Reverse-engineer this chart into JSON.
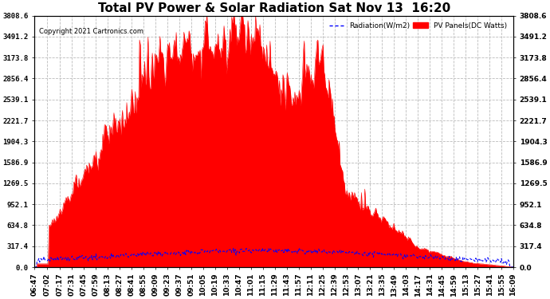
{
  "title": "Total PV Power & Solar Radiation Sat Nov 13  16:20",
  "copyright": "Copyright 2021 Cartronics.com",
  "legend_radiation": "Radiation(W/m2)",
  "legend_pv": "PV Panels(DC Watts)",
  "ymax": 3808.6,
  "yticks": [
    0.0,
    317.4,
    634.8,
    952.1,
    1269.5,
    1586.9,
    1904.3,
    2221.7,
    2539.1,
    2856.4,
    3173.8,
    3491.2,
    3808.6
  ],
  "background_color": "#ffffff",
  "grid_color": "#bbbbbb",
  "pv_color": "#ff0000",
  "radiation_color": "#0000ff",
  "title_fontsize": 11,
  "tick_fontsize": 6.5,
  "time_labels": [
    "06:47",
    "07:02",
    "07:17",
    "07:31",
    "07:45",
    "07:59",
    "08:13",
    "08:27",
    "08:41",
    "08:55",
    "09:09",
    "09:23",
    "09:37",
    "09:51",
    "10:05",
    "10:19",
    "10:33",
    "10:47",
    "11:01",
    "11:15",
    "11:29",
    "11:43",
    "11:57",
    "12:11",
    "12:25",
    "12:39",
    "12:53",
    "13:07",
    "13:21",
    "13:35",
    "13:49",
    "14:03",
    "14:17",
    "14:31",
    "14:45",
    "14:59",
    "15:13",
    "15:27",
    "15:41",
    "15:55",
    "16:09"
  ]
}
